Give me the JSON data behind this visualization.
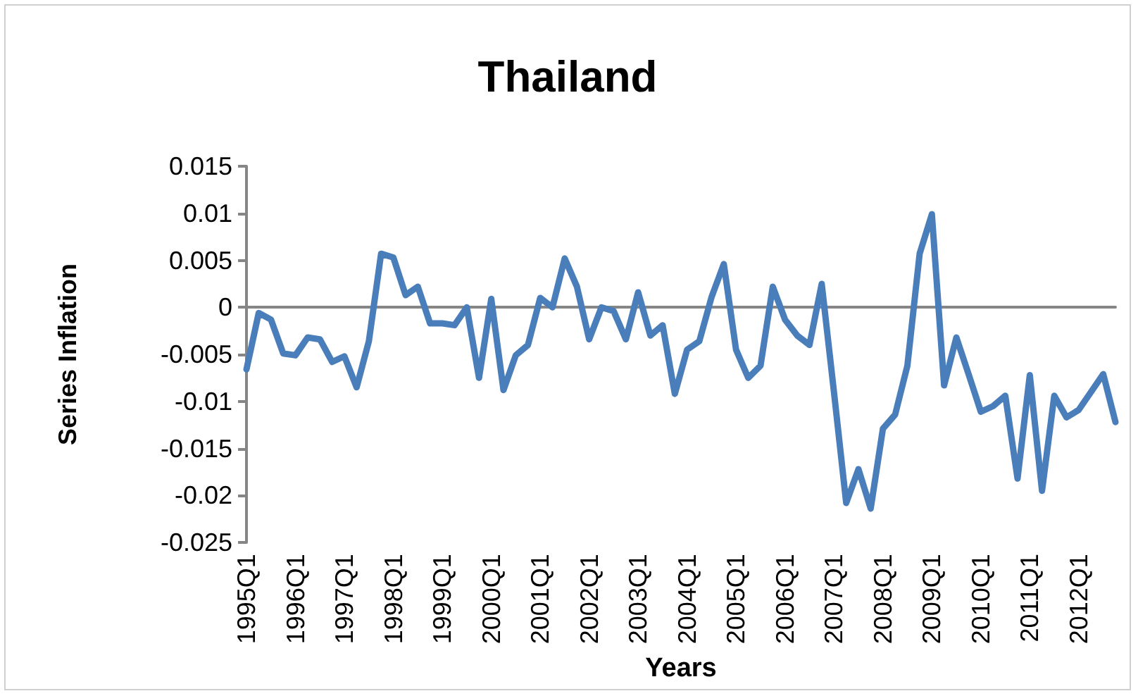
{
  "chart_data": {
    "type": "line",
    "title": "Thailand",
    "xlabel": "Years",
    "ylabel": "Series Inflation",
    "categories": [
      "1995Q1",
      null,
      null,
      null,
      "1996Q1",
      null,
      null,
      null,
      "1997Q1",
      null,
      null,
      null,
      "1998Q1",
      null,
      null,
      null,
      "1999Q1",
      null,
      null,
      null,
      "2000Q1",
      null,
      null,
      null,
      "2001Q1",
      null,
      null,
      null,
      "2002Q1",
      null,
      null,
      null,
      "2003Q1",
      null,
      null,
      null,
      "2004Q1",
      null,
      null,
      null,
      "2005Q1",
      null,
      null,
      null,
      "2006Q1",
      null,
      null,
      null,
      "2007Q1",
      null,
      null,
      null,
      "2008Q1",
      null,
      null,
      null,
      "2009Q1",
      null,
      null,
      null,
      "2010Q1",
      null,
      null,
      null,
      "2011Q1",
      null,
      null,
      null,
      "2012Q1",
      null,
      null,
      null
    ],
    "series": [
      {
        "color": "#4a7ebb",
        "values": [
          -0.0066,
          -0.0006,
          -0.0013,
          -0.0049,
          -0.0051,
          -0.0032,
          -0.0034,
          -0.0058,
          -0.0052,
          -0.0085,
          -0.0036,
          0.0057,
          0.0053,
          0.0013,
          0.0022,
          -0.0017,
          -0.0017,
          -0.0019,
          0,
          -0.0075,
          0.0009,
          -0.0088,
          -0.0051,
          -0.004,
          0.001,
          0,
          0.0052,
          0.0022,
          -0.0034,
          0,
          -0.0004,
          -0.0034,
          0.0016,
          -0.003,
          -0.0019,
          -0.0092,
          -0.0045,
          -0.0036,
          0.0011,
          0.0046,
          -0.0045,
          -0.0075,
          -0.0062,
          0.0022,
          -0.0013,
          -0.003,
          -0.004,
          0.0025,
          -0.009,
          -0.0208,
          -0.0172,
          -0.0214,
          -0.0129,
          -0.0114,
          -0.0062,
          0.0057,
          0.0099,
          -0.0083,
          -0.0032,
          -0.0071,
          -0.0111,
          -0.0105,
          -0.0094,
          -0.0182,
          -0.0072,
          -0.0195,
          -0.0094,
          -0.0117,
          -0.0109,
          -0.009,
          -0.0071,
          -0.0122
        ]
      }
    ],
    "ylim": [
      -0.025,
      0.015
    ],
    "yticks": [
      -0.025,
      -0.02,
      -0.015,
      -0.01,
      -0.005,
      0,
      0.005,
      0.01,
      0.015
    ],
    "marker": "none",
    "line_style": "solid"
  }
}
